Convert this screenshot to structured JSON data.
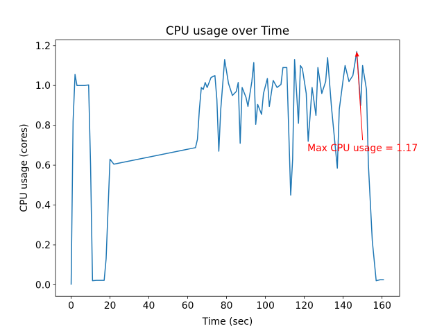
{
  "chart_data": {
    "type": "line",
    "title": "CPU usage over Time",
    "xlabel": "Time (sec)",
    "ylabel": "CPU usage (cores)",
    "color": "#1f77b4",
    "x": [
      0,
      1,
      2,
      3,
      5,
      7,
      9,
      10,
      11,
      13,
      15,
      17,
      18,
      20,
      22,
      64,
      65,
      66,
      67,
      68,
      69,
      70,
      72,
      74,
      75,
      76,
      77,
      79,
      81,
      83,
      85,
      86,
      87,
      88,
      90,
      91,
      93,
      94,
      95,
      96,
      98,
      99,
      101,
      102,
      104,
      106,
      108,
      109,
      111,
      113,
      114,
      115,
      117,
      118,
      119,
      121,
      122,
      123,
      124,
      126,
      127,
      129,
      131,
      132,
      134,
      137,
      138,
      140,
      141,
      143,
      145,
      147,
      149,
      150,
      152,
      153,
      155,
      157,
      159,
      161
    ],
    "values": [
      0,
      0.82,
      1.055,
      1.0,
      1.0,
      1.0,
      1.003,
      0.6,
      0.02,
      0.022,
      0.022,
      0.022,
      0.13,
      0.63,
      0.605,
      0.688,
      0.73,
      0.88,
      0.99,
      0.98,
      1.015,
      0.99,
      1.04,
      1.05,
      0.93,
      0.67,
      0.88,
      1.13,
      1.01,
      0.95,
      0.97,
      1.015,
      0.71,
      0.99,
      0.94,
      0.895,
      1.02,
      1.115,
      0.805,
      0.905,
      0.855,
      0.96,
      1.035,
      0.895,
      1.025,
      0.99,
      1.005,
      1.09,
      1.09,
      0.45,
      0.63,
      1.13,
      0.81,
      1.1,
      1.085,
      0.96,
      0.72,
      0.85,
      0.99,
      0.85,
      1.09,
      0.96,
      1.02,
      1.14,
      0.89,
      0.585,
      0.88,
      1.03,
      1.1,
      1.02,
      1.05,
      1.17,
      0.9,
      1.1,
      0.98,
      0.6,
      0.22,
      0.02,
      0.025,
      0.025
    ],
    "xlim": [
      -8.05,
      169.05
    ],
    "ylim": [
      -0.0585,
      1.2285
    ],
    "xticks": [
      0,
      20,
      40,
      60,
      80,
      100,
      120,
      140,
      160
    ],
    "yticks": [
      {
        "value": 0,
        "label": "0.0"
      },
      0.2,
      0.4,
      0.6,
      0.8,
      {
        "value": 1,
        "label": "1.0"
      },
      1.2
    ],
    "annotation": {
      "text": "Max CPU usage = 1.17",
      "xy": [
        147,
        1.17
      ],
      "xytext": [
        150,
        0.68
      ],
      "color": "red"
    }
  }
}
